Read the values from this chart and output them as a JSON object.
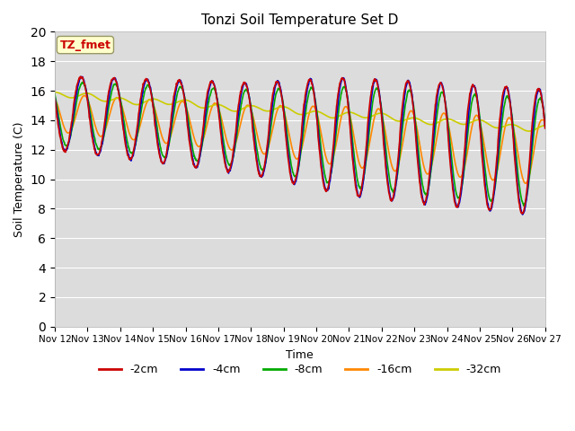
{
  "title": "Tonzi Soil Temperature Set D",
  "xlabel": "Time",
  "ylabel": "Soil Temperature (C)",
  "ylim": [
    0,
    20
  ],
  "yticks": [
    0,
    2,
    4,
    6,
    8,
    10,
    12,
    14,
    16,
    18,
    20
  ],
  "xtick_labels": [
    "Nov 12",
    "Nov 13",
    "Nov 14",
    "Nov 15",
    "Nov 16",
    "Nov 17",
    "Nov 18",
    "Nov 19",
    "Nov 20",
    "Nov 21",
    "Nov 22",
    "Nov 23",
    "Nov 24",
    "Nov 25",
    "Nov 26",
    "Nov 27"
  ],
  "series_colors": [
    "#cc0000",
    "#0000cc",
    "#00aa00",
    "#ff8800",
    "#cccc00"
  ],
  "series_labels": [
    "-2cm",
    "-4cm",
    "-8cm",
    "-16cm",
    "-32cm"
  ],
  "bg_color": "#dcdcdc",
  "annotation_text": "TZ_fmet",
  "annotation_bg": "#ffffcc",
  "annotation_fg": "#cc0000",
  "days": 15,
  "n_points": 1440
}
